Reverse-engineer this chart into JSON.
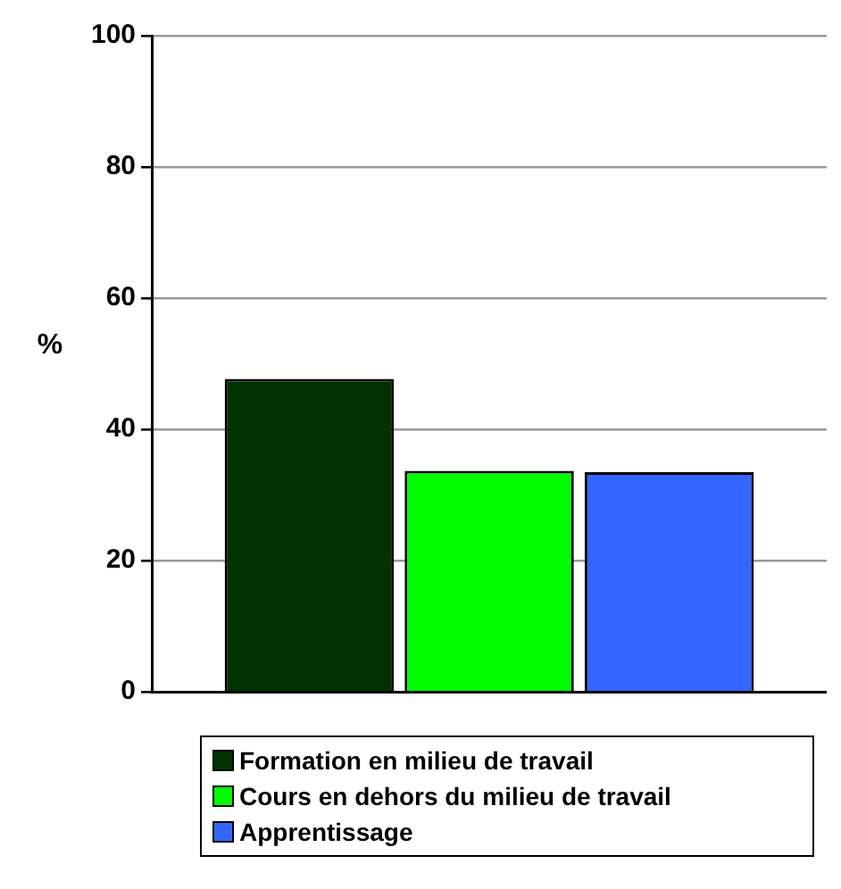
{
  "chart_data": {
    "type": "bar",
    "ylabel": "%",
    "categories": [
      null
    ],
    "series": [
      {
        "name": "Formation en milieu de travail",
        "color": "#003300",
        "values": [
          47.7
        ]
      },
      {
        "name": "Cours en dehors du milieu de travail",
        "color": "#00ff00",
        "values": [
          33.7
        ]
      },
      {
        "name": "Apprentissage",
        "color": "#3366ff",
        "values": [
          33.5
        ]
      }
    ],
    "ylim": [
      0,
      100
    ],
    "yticks": [
      0,
      20,
      40,
      60,
      80,
      100
    ],
    "grid": "y",
    "legend": "bottom"
  }
}
